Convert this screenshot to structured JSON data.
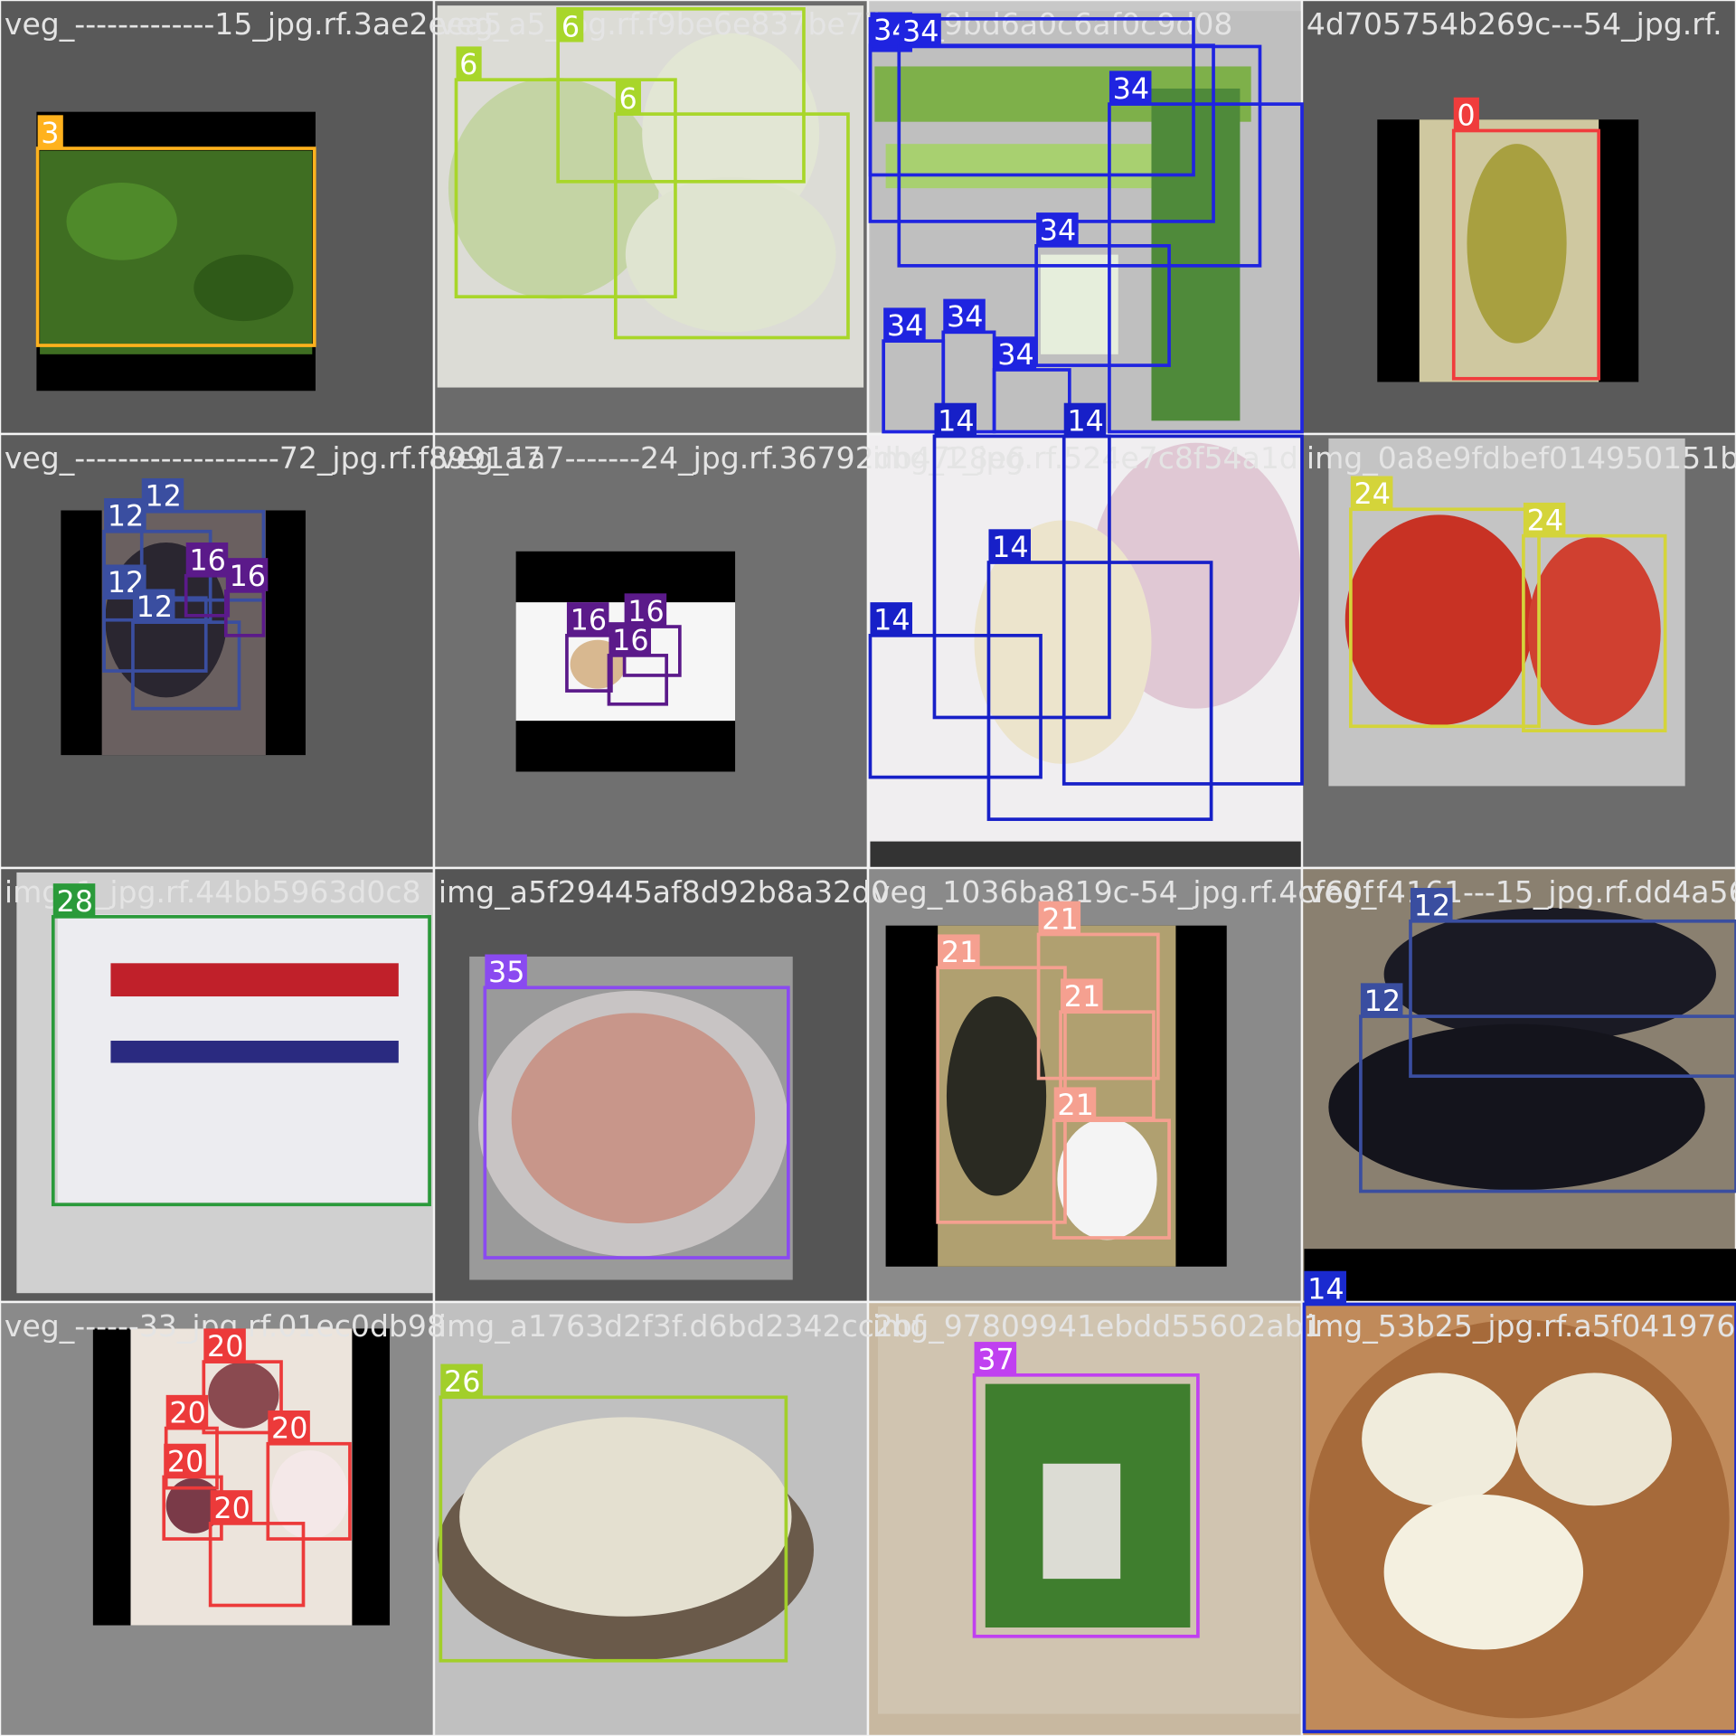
{
  "tiles": [
    {
      "filename": "veg_-------------15_jpg.rf.3ae2eea5",
      "boxes": [
        "3"
      ]
    },
    {
      "filename": "veg_a5_jpg.rf.f9be6e837be77",
      "boxes": [
        "6",
        "6",
        "6"
      ]
    },
    {
      "filename": "img_9bd6a0c6af0c9d08",
      "boxes": [
        "34",
        "34",
        "34",
        "34",
        "34",
        "34",
        "34",
        "34"
      ]
    },
    {
      "filename": "4d705754b269c---54_jpg.rf.",
      "boxes": [
        "0"
      ]
    },
    {
      "filename": "veg_-------------------72_jpg.rf.f8991a7",
      "boxes": [
        "12",
        "12",
        "12",
        "12",
        "16",
        "16"
      ]
    },
    {
      "filename": "veg_1a7-------24_jpg.rf.36792db4728e6",
      "boxes": [
        "16",
        "16",
        "16"
      ]
    },
    {
      "filename": "img_1_jpg.rf.524e7c8f54a1d",
      "boxes": [
        "14",
        "14",
        "14",
        "14"
      ]
    },
    {
      "filename": "img_0a8e9fdbef014950151b4d",
      "boxes": [
        "24",
        "24"
      ]
    },
    {
      "filename": "img_1_jpg.rf.44bb5963d0c8",
      "boxes": [
        "28"
      ]
    },
    {
      "filename": "img_a5f29445af8d92b8a32d0",
      "boxes": [
        "35"
      ]
    },
    {
      "filename": "veg_1036ba819c-54_jpg.rf.4cf60f",
      "boxes": [
        "21",
        "21",
        "21",
        "21"
      ]
    },
    {
      "filename": "veg_f4161---15_jpg.rf.dd4a56",
      "boxes": [
        "12",
        "12"
      ]
    },
    {
      "filename": "veg_------33_jpg.rf.01ec0db98",
      "boxes": [
        "20",
        "20",
        "20",
        "20",
        "20"
      ]
    },
    {
      "filename": "img_a1763d2f3f.d6bd2342cc2bf",
      "boxes": [
        "26"
      ]
    },
    {
      "filename": "img_97809941ebdd55602ab1",
      "boxes": [
        "37"
      ]
    },
    {
      "filename": "img_53b25_jpg.rf.a5f0419760838",
      "boxes": [
        "14"
      ]
    }
  ]
}
